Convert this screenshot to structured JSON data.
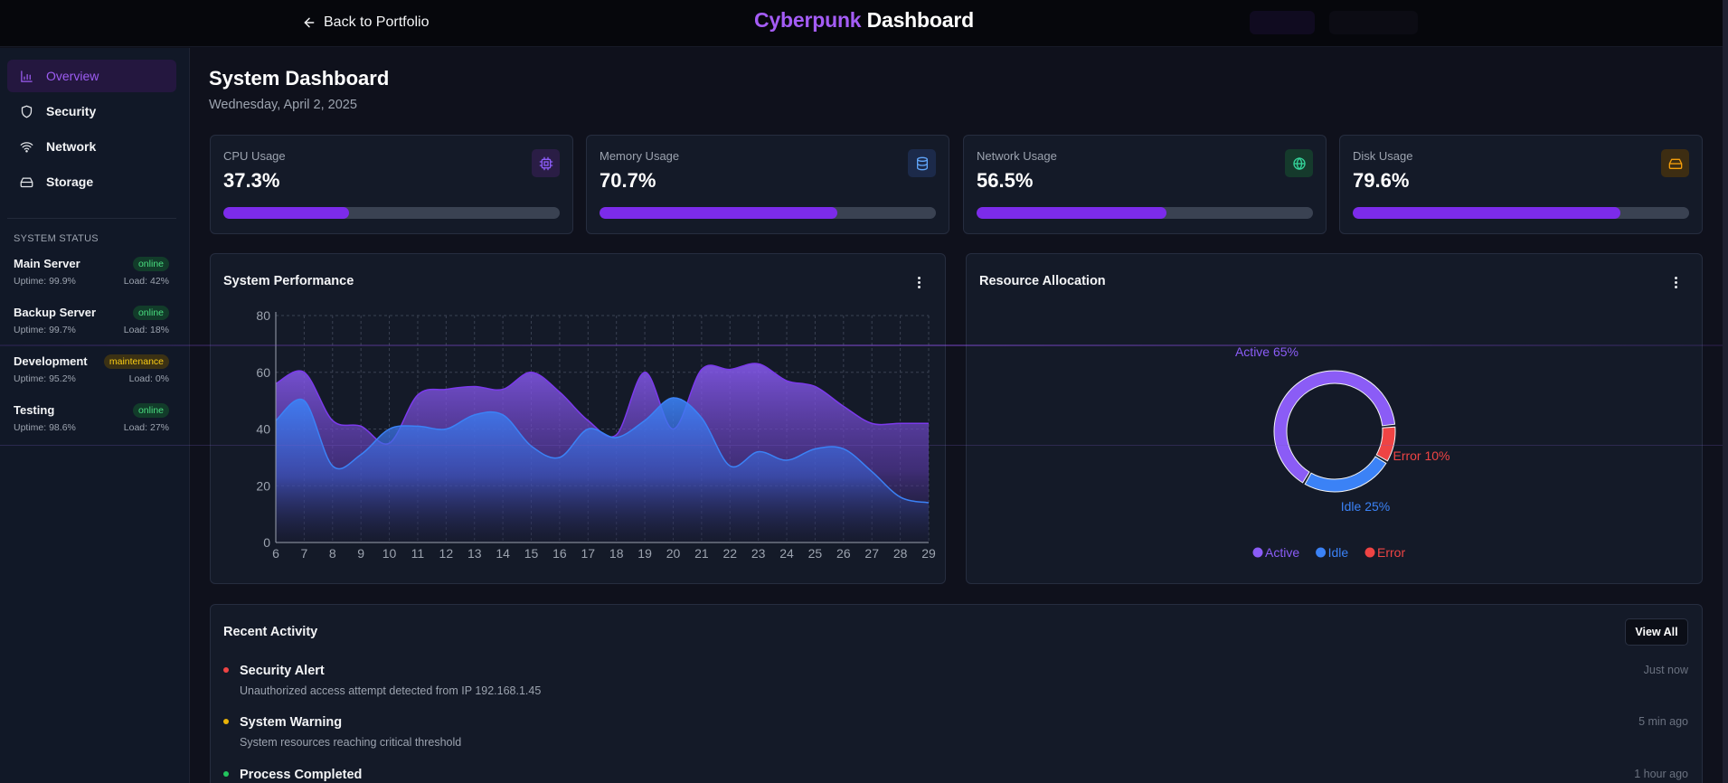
{
  "header": {
    "back_label": "Back to Portfolio",
    "brand_part1": "Cyberpunk",
    "brand_part2": "Dashboard"
  },
  "sidebar": {
    "items": [
      {
        "label": "Overview",
        "icon": "bar-chart-icon",
        "active": true
      },
      {
        "label": "Security",
        "icon": "shield-icon",
        "active": false
      },
      {
        "label": "Network",
        "icon": "wifi-icon",
        "active": false
      },
      {
        "label": "Storage",
        "icon": "hard-drive-icon",
        "active": false
      }
    ],
    "status_heading": "SYSTEM STATUS",
    "servers": [
      {
        "name": "Main Server",
        "status": "online",
        "uptime": "Uptime: 99.9%",
        "load": "Load: 42%"
      },
      {
        "name": "Backup Server",
        "status": "online",
        "uptime": "Uptime: 99.7%",
        "load": "Load: 18%"
      },
      {
        "name": "Development",
        "status": "maintenance",
        "uptime": "Uptime: 95.2%",
        "load": "Load: 0%"
      },
      {
        "name": "Testing",
        "status": "online",
        "uptime": "Uptime: 98.6%",
        "load": "Load: 27%"
      }
    ]
  },
  "main": {
    "title": "System Dashboard",
    "date": "Wednesday, April 2, 2025",
    "metrics": [
      {
        "label": "CPU Usage",
        "value": "37.3%",
        "percent": 37.3,
        "icon": "cpu-icon",
        "icon_color": "#8b5cf6",
        "icon_bg": "#2a1d45"
      },
      {
        "label": "Memory Usage",
        "value": "70.7%",
        "percent": 70.7,
        "icon": "database-icon",
        "icon_color": "#60a5fa",
        "icon_bg": "#1c2a4a"
      },
      {
        "label": "Network Usage",
        "value": "56.5%",
        "percent": 56.5,
        "icon": "globe-icon",
        "icon_color": "#34d399",
        "icon_bg": "#153a2c"
      },
      {
        "label": "Disk Usage",
        "value": "79.6%",
        "percent": 79.6,
        "icon": "hard-drive-icon",
        "icon_color": "#f59e0b",
        "icon_bg": "#3d2d12"
      }
    ],
    "performance": {
      "title": "System Performance"
    },
    "allocation": {
      "title": "Resource Allocation"
    },
    "activity": {
      "title": "Recent Activity",
      "view_all": "View All",
      "items": [
        {
          "title": "Security Alert",
          "desc": "Unauthorized access attempt detected from IP 192.168.1.45",
          "time": "Just now",
          "color": "#ef4444"
        },
        {
          "title": "System Warning",
          "desc": "System resources reaching critical threshold",
          "time": "5 min ago",
          "color": "#eab308"
        },
        {
          "title": "Process Completed",
          "desc": "",
          "time": "1 hour ago",
          "color": "#22c55e"
        }
      ]
    }
  },
  "chart_data": [
    {
      "type": "area",
      "x": [
        6,
        7,
        8,
        9,
        10,
        11,
        12,
        13,
        14,
        15,
        16,
        17,
        18,
        19,
        20,
        21,
        22,
        23,
        24,
        25,
        26,
        27,
        28,
        29
      ],
      "xlim": [
        6,
        29
      ],
      "ylim": [
        0,
        80
      ],
      "yticks": [
        0,
        20,
        40,
        60,
        80
      ],
      "grid": true,
      "series": [
        {
          "color": "#7c3aed",
          "values": [
            56,
            60,
            43,
            41,
            35,
            52,
            54,
            55,
            54,
            60,
            53,
            43,
            38,
            60,
            40,
            61,
            61,
            63,
            57,
            55,
            48,
            42,
            42,
            42
          ]
        },
        {
          "color": "#3b82f6",
          "values": [
            43,
            50,
            27,
            31,
            40,
            41,
            40,
            45,
            45,
            34,
            30,
            40,
            37,
            43,
            51,
            44,
            27,
            32,
            29,
            33,
            33,
            25,
            16,
            14
          ]
        }
      ]
    },
    {
      "type": "pie",
      "labels": [
        "Active",
        "Idle",
        "Error"
      ],
      "values": [
        65,
        25,
        10
      ],
      "data_labels": [
        "Active 65%",
        "Idle 25%",
        "Error 10%"
      ],
      "colors": [
        "#8b5cf6",
        "#3b82f6",
        "#ef4444"
      ],
      "legend": "bottom"
    }
  ]
}
